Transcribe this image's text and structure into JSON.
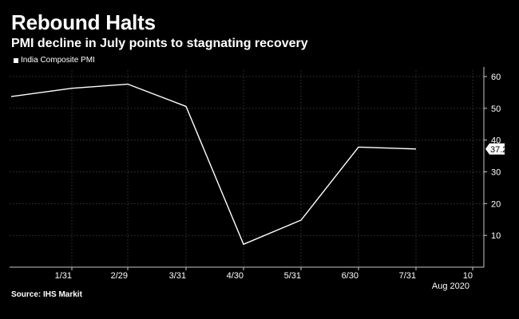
{
  "title": "Rebound Halts",
  "subtitle": "PMI decline in July points to stagnating recovery",
  "source": "Source: IHS Markit",
  "colors": {
    "background": "#000000",
    "line": "#ffffff",
    "grid": "#5a5a5a",
    "axis": "#c8c8c8"
  },
  "chart_data": {
    "type": "line",
    "title": "Rebound Halts",
    "subtitle": "PMI decline in July points to stagnating recovery",
    "xlabel": "",
    "ylabel": "",
    "x_ticks": [
      "1/31",
      "2/29",
      "3/31",
      "4/30",
      "5/31",
      "6/30",
      "7/31",
      "10"
    ],
    "x_sublabel": "Aug 2020",
    "y_ticks": [
      10,
      20,
      30,
      40,
      50,
      60
    ],
    "ylim": [
      0,
      62
    ],
    "grid": true,
    "y_axis_position": "right",
    "legend_position": "top-left",
    "series": [
      {
        "name": "India Composite PMI",
        "x": [
          "12/31",
          "1/31",
          "2/29",
          "3/31",
          "4/30",
          "5/31",
          "6/30",
          "7/31"
        ],
        "values": [
          53.7,
          56.3,
          57.6,
          50.6,
          7.2,
          14.8,
          37.8,
          37.2
        ]
      }
    ],
    "last_value_label": "37.2"
  }
}
